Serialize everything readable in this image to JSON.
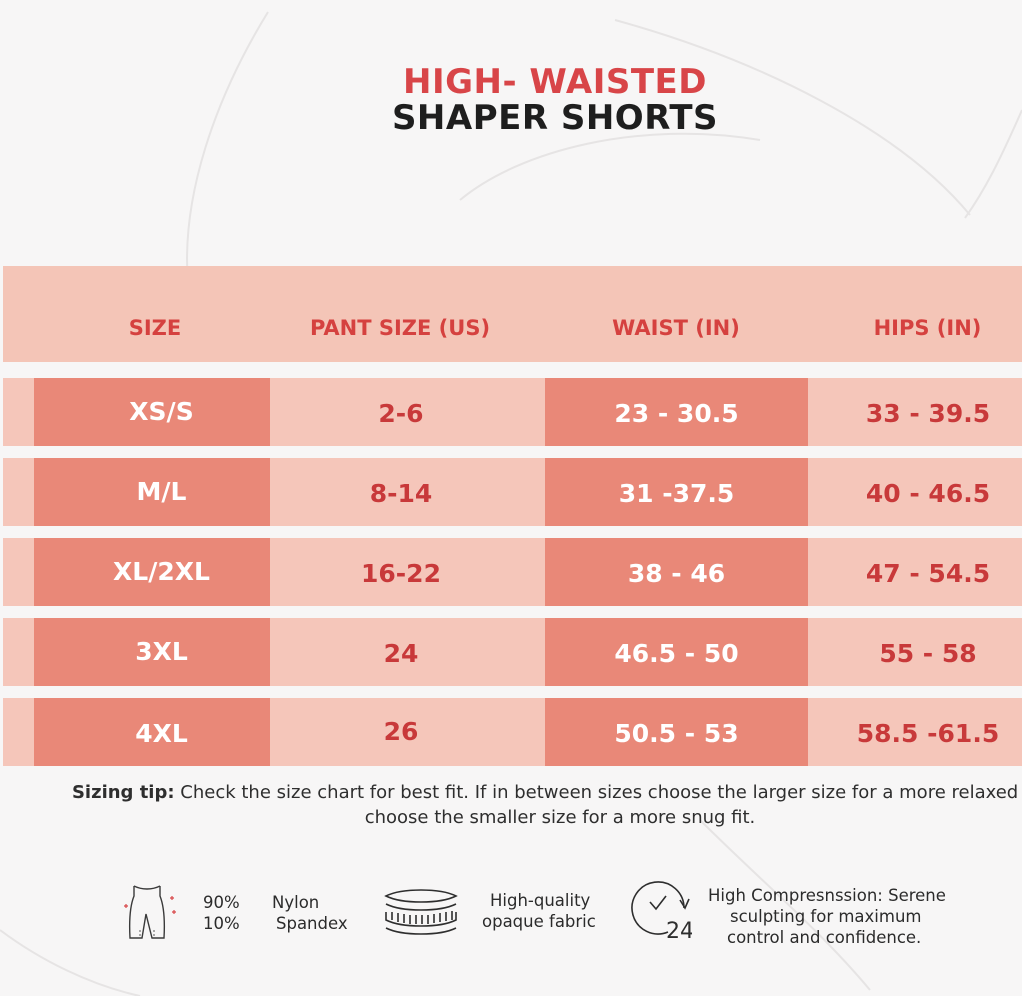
{
  "title": {
    "line1": "HIGH- WAISTED",
    "line2": "SHAPER SHORTS"
  },
  "colors": {
    "accent_red": "#d84548",
    "header_band": "#f4c5b7",
    "row_light": "#f5c6ba",
    "row_dark": "#e98878"
  },
  "table": {
    "headers": [
      "SIZE",
      "PANT SIZE (US)",
      "WAIST (IN)",
      "HIPS (IN)"
    ],
    "rows": [
      [
        "XS/S",
        "2-6",
        "23 - 30.5",
        "33 - 39.5"
      ],
      [
        "M/L",
        "8-14",
        "31 -37.5",
        "40 - 46.5"
      ],
      [
        "XL/2XL",
        "16-22",
        "38 - 46",
        "47 - 54.5"
      ],
      [
        "3XL",
        "24",
        "46.5 - 50",
        "55 - 58"
      ],
      [
        "4XL",
        "26",
        "50.5 - 53",
        "58.5 -61.5"
      ]
    ]
  },
  "tip": {
    "label": "Sizing tip:",
    "text": " Check the size chart for best fit. If in between sizes choose the larger size for a more relaxed fit, choose the smaller size for a more snug fit."
  },
  "features": {
    "material": {
      "icon": "shorts-icon",
      "pct1": "90%",
      "pct2": "10%",
      "name1": "Nylon",
      "name2": "Spandex"
    },
    "fabric": {
      "icon": "fabric-layers-icon",
      "line1": "High-quality",
      "line2": "opaque fabric"
    },
    "compression": {
      "icon": "clock-24-icon",
      "clock_label": "24",
      "line1": "High Compresnssion: Serene",
      "line2": "sculpting for maximum",
      "line3": "control and confidence."
    }
  }
}
